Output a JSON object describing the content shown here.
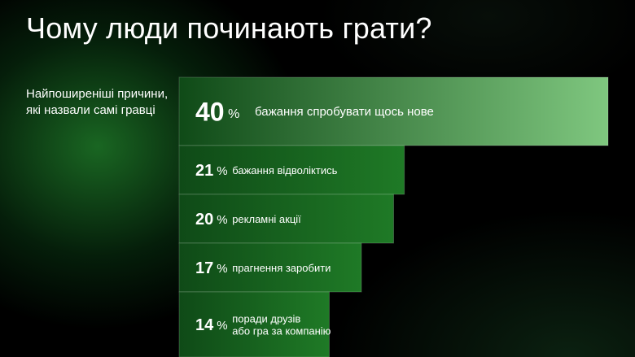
{
  "title": "Чому люди починають грати?",
  "subtitle": "Найпоширеніші причини, які назвали самі гравці",
  "chart_data": {
    "type": "bar",
    "orientation": "horizontal",
    "value_suffix": "%",
    "xlim": [
      0,
      40
    ],
    "grid": false,
    "legend": "none",
    "categories": [
      [
        "бажання спробувати щось нове"
      ],
      [
        "бажання відволіктись"
      ],
      [
        "рекламні акції"
      ],
      [
        "прагнення заробити"
      ],
      [
        "поради друзів",
        "або гра за компанію"
      ]
    ],
    "values": [
      40,
      21,
      20,
      17,
      14
    ],
    "colors": {
      "bar_top": "#7fc77f",
      "bar_dark": "#0f4a17",
      "bar_mid": "#1f7a26",
      "text": "#ffffff"
    }
  }
}
